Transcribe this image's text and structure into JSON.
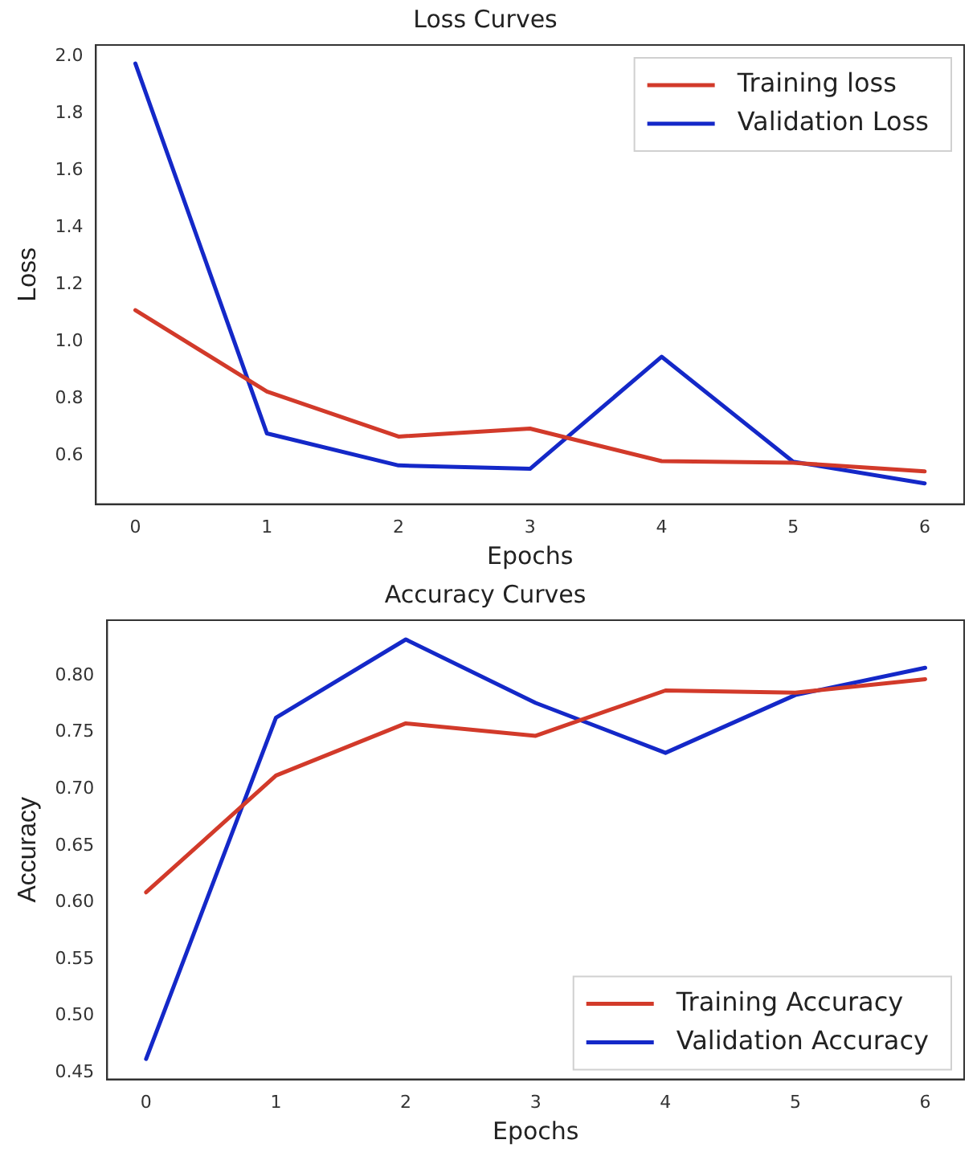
{
  "chart_data": [
    {
      "type": "line",
      "title": "Loss Curves",
      "xlabel": "Epochs",
      "ylabel": "Loss",
      "x": [
        0,
        1,
        2,
        3,
        4,
        5,
        6
      ],
      "xlim": [
        -0.3,
        6.3
      ],
      "xticks": [
        0,
        1,
        2,
        3,
        4,
        5,
        6
      ],
      "ylim": [
        0.43,
        2.04
      ],
      "yticks": [
        0.6,
        0.8,
        {
          "value": 1,
          "label": "1.0"
        },
        1.2,
        1.4,
        1.6,
        1.8,
        {
          "value": 2,
          "label": "2.0"
        }
      ],
      "grid": false,
      "legend": "top right",
      "marker": "none",
      "line_style": "solid",
      "series": [
        {
          "name": "Training loss",
          "color": "#d23a2a",
          "values": [
            1.11,
            0.825,
            0.667,
            0.695,
            0.581,
            0.575,
            0.545
          ]
        },
        {
          "name": "Validation Loss",
          "color": "#1428c8",
          "values": [
            1.975,
            0.678,
            0.566,
            0.554,
            0.947,
            0.579,
            0.503
          ]
        }
      ]
    },
    {
      "type": "line",
      "title": "Accuracy Curves",
      "xlabel": "Epochs",
      "ylabel": "Accuracy",
      "x": [
        0,
        1,
        2,
        3,
        4,
        5,
        6
      ],
      "xlim": [
        -0.3,
        6.3
      ],
      "xticks": [
        0,
        1,
        2,
        3,
        4,
        5,
        6
      ],
      "ylim": [
        0.444,
        0.849
      ],
      "yticks": [
        0.45,
        {
          "value": 0.5,
          "label": "0.50"
        },
        0.55,
        {
          "value": 0.6,
          "label": "0.60"
        },
        0.65,
        {
          "value": 0.7,
          "label": "0.70"
        },
        0.75,
        {
          "value": 0.8,
          "label": "0.80"
        }
      ],
      "grid": false,
      "legend": "bottom right",
      "marker": "none",
      "line_style": "solid",
      "series": [
        {
          "name": "Training Accuracy",
          "color": "#d23a2a",
          "values": [
            0.609,
            0.712,
            0.758,
            0.747,
            0.787,
            0.785,
            0.797
          ]
        },
        {
          "name": "Validation Accuracy",
          "color": "#1428c8",
          "values": [
            0.462,
            0.763,
            0.832,
            0.776,
            0.732,
            0.783,
            0.807
          ]
        }
      ]
    }
  ]
}
